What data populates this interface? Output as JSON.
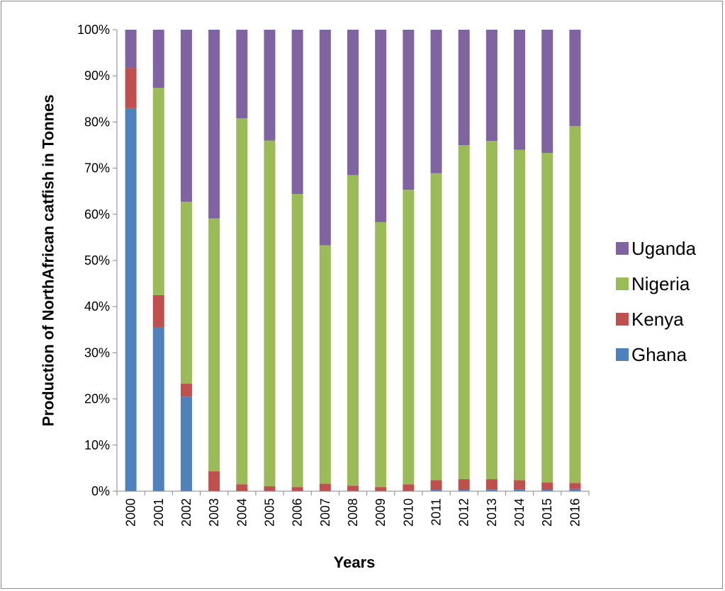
{
  "chart_data": {
    "type": "bar",
    "stacked": "percent",
    "categories": [
      "2000",
      "2001",
      "2002",
      "2003",
      "2004",
      "2005",
      "2006",
      "2007",
      "2008",
      "2009",
      "2010",
      "2011",
      "2012",
      "2013",
      "2014",
      "2015",
      "2016"
    ],
    "series": [
      {
        "name": "Ghana",
        "color": "#4f81bd",
        "values": [
          83.0,
          35.5,
          20.5,
          0.0,
          0.0,
          0.0,
          0.0,
          0.0,
          0.0,
          0.0,
          0.0,
          0.3,
          0.3,
          0.4,
          0.4,
          0.3,
          0.5
        ]
      },
      {
        "name": "Kenya",
        "color": "#c0504d",
        "values": [
          8.7,
          7.0,
          2.8,
          4.3,
          1.5,
          1.1,
          0.9,
          1.6,
          1.2,
          0.9,
          1.5,
          2.1,
          2.3,
          2.2,
          2.0,
          1.6,
          1.3
        ]
      },
      {
        "name": "Nigeria",
        "color": "#9bbb59",
        "values": [
          0.0,
          44.9,
          39.4,
          54.8,
          79.3,
          74.9,
          63.5,
          51.7,
          67.3,
          57.4,
          63.8,
          66.5,
          72.4,
          73.3,
          71.6,
          71.4,
          77.3
        ]
      },
      {
        "name": "Uganda",
        "color": "#8064a2",
        "values": [
          8.3,
          12.6,
          37.3,
          40.9,
          19.2,
          24.0,
          35.6,
          46.7,
          31.5,
          41.7,
          34.7,
          31.1,
          25.0,
          24.1,
          26.0,
          26.7,
          20.9
        ]
      }
    ],
    "ylim": [
      0,
      100
    ],
    "yticks": [
      "0%",
      "10%",
      "20%",
      "30%",
      "40%",
      "50%",
      "60%",
      "70%",
      "80%",
      "90%",
      "100%"
    ],
    "xlabel": "Years",
    "ylabel": "Production of NorthAfrican catfish in Tonnes",
    "legend": {
      "placement": "right",
      "order": [
        "Uganda",
        "Nigeria",
        "Kenya",
        "Ghana"
      ]
    },
    "grid": false
  }
}
